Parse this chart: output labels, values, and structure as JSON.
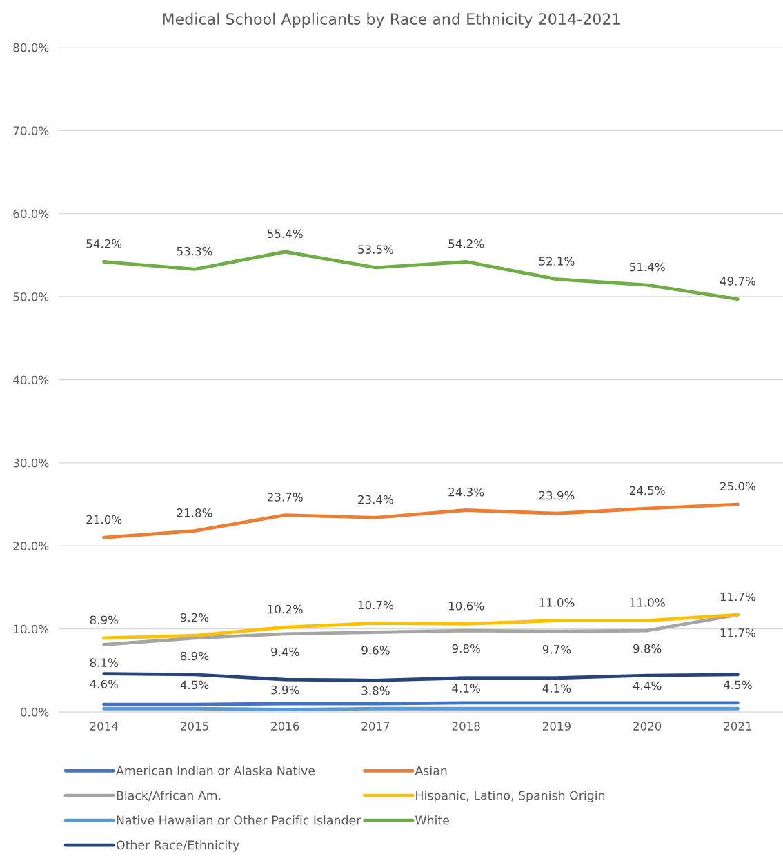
{
  "chart_data": {
    "type": "line",
    "title": "Medical School Applicants by Race and Ethnicity 2014-2021",
    "categories": [
      "2014",
      "2015",
      "2016",
      "2017",
      "2018",
      "2019",
      "2020",
      "2021"
    ],
    "ylim": [
      0,
      80
    ],
    "yticks": [
      {
        "value": 0,
        "label": "0.0%"
      },
      {
        "value": 10,
        "label": "10.0%"
      },
      {
        "value": 20,
        "label": "20.0%"
      },
      {
        "value": 30,
        "label": "30.0%"
      },
      {
        "value": 40,
        "label": "40.0%"
      },
      {
        "value": 50,
        "label": "50.0%"
      },
      {
        "value": 60,
        "label": "60.0%"
      },
      {
        "value": 70,
        "label": "70.0%"
      },
      {
        "value": 80,
        "label": "80.0%"
      }
    ],
    "grid": "y",
    "legend": "bottom",
    "marker": "none",
    "line_style": "solid",
    "series": [
      {
        "name": "American Indian or Alaska Native",
        "color": "#4472c4",
        "values": [
          0.9,
          0.9,
          1.0,
          1.0,
          1.1,
          1.1,
          1.1,
          1.1
        ]
      },
      {
        "name": "Asian",
        "color": "#ed7d31",
        "values": [
          21.0,
          21.8,
          23.7,
          23.4,
          24.3,
          23.9,
          24.5,
          25.0
        ],
        "value_labels": [
          "21.0%",
          "21.8%",
          "23.7%",
          "23.4%",
          "24.3%",
          "23.9%",
          "24.5%",
          "25.0%"
        ]
      },
      {
        "name": "Black/African Am.",
        "color": "#a5a5a5",
        "values": [
          8.1,
          8.9,
          9.4,
          9.6,
          9.8,
          9.7,
          9.8,
          11.7
        ],
        "value_labels": [
          "8.1%",
          "8.9%",
          "9.4%",
          "9.6%",
          "9.8%",
          "9.7%",
          "9.8%",
          "11.7%"
        ]
      },
      {
        "name": "Hispanic, Latino, Spanish Origin",
        "color": "#ffc000",
        "values": [
          8.9,
          9.2,
          10.2,
          10.7,
          10.6,
          11.0,
          11.0,
          11.7
        ],
        "value_labels": [
          "8.9%",
          "9.2%",
          "10.2%",
          "10.7%",
          "10.6%",
          "11.0%",
          "11.0%",
          "11.7%"
        ]
      },
      {
        "name": "Native Hawaiian or Other Pacific Islander",
        "color": "#5b9bd5",
        "values": [
          0.4,
          0.4,
          0.3,
          0.4,
          0.4,
          0.4,
          0.4,
          0.4
        ]
      },
      {
        "name": "White",
        "color": "#70ad47",
        "values": [
          54.2,
          53.3,
          55.4,
          53.5,
          54.2,
          52.1,
          51.4,
          49.7
        ],
        "value_labels": [
          "54.2%",
          "53.3%",
          "55.4%",
          "53.5%",
          "54.2%",
          "52.1%",
          "51.4%",
          "49.7%"
        ]
      },
      {
        "name": "Other Race/Ethnicity",
        "color": "#264478",
        "values": [
          4.6,
          4.5,
          3.9,
          3.8,
          4.1,
          4.1,
          4.4,
          4.5
        ],
        "value_labels": [
          "4.6%",
          "4.5%",
          "3.9%",
          "3.8%",
          "4.1%",
          "4.1%",
          "4.4%",
          "4.5%"
        ]
      }
    ]
  }
}
